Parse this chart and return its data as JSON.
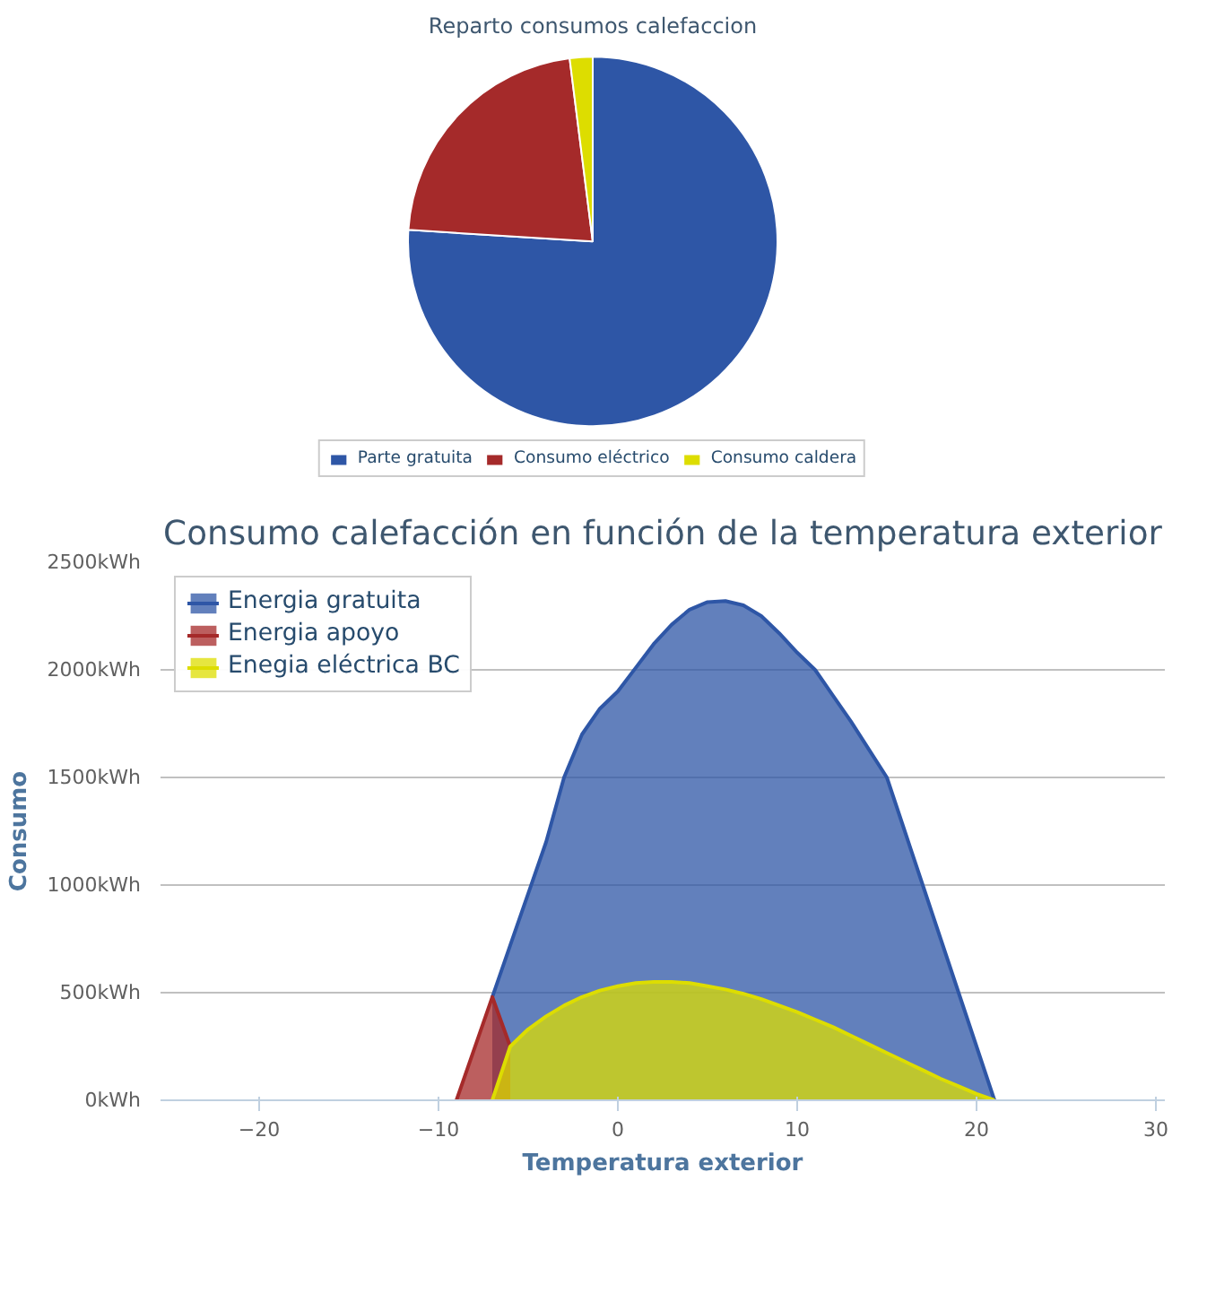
{
  "chart_data": [
    {
      "type": "pie",
      "title": "Reparto consumos calefaccion",
      "categories": [
        "Parte gratuita",
        "Consumo eléctrico",
        "Consumo caldera"
      ],
      "values": [
        76,
        22,
        2
      ],
      "colors": [
        "#2e56a6",
        "#a52a2a",
        "#dddd00"
      ],
      "legend": "bottom"
    },
    {
      "type": "area",
      "title": "Consumo calefacción en función de la temperatura exterior",
      "xlabel": "Temperatura exterior",
      "ylabel": "Consumo",
      "xlim": [
        -25.5,
        30.5
      ],
      "xticks": [
        -20,
        -10,
        0,
        10,
        20,
        30
      ],
      "ylim": [
        0,
        2500
      ],
      "yticks": [
        {
          "value": 0,
          "label": "0kWh"
        },
        {
          "value": 500,
          "label": "500kWh"
        },
        {
          "value": 1000,
          "label": "1000kWh"
        },
        {
          "value": 1500,
          "label": "1500kWh"
        },
        {
          "value": 2000,
          "label": "2000kWh"
        },
        {
          "value": 2500,
          "label": "2500kWh"
        }
      ],
      "grid": "y",
      "legend": "top left",
      "series": [
        {
          "name": "Energia gratuita",
          "color": "#2e56a6",
          "x": [
            -7,
            -6,
            -5,
            -4,
            -3,
            -2,
            -1,
            0,
            1,
            2,
            3,
            4,
            5,
            6,
            7,
            8,
            9,
            10,
            11,
            12,
            13,
            14,
            15,
            16,
            17,
            18,
            19,
            20,
            21
          ],
          "values": [
            480,
            720,
            960,
            1200,
            1500,
            1700,
            1820,
            1900,
            2010,
            2120,
            2210,
            2280,
            2315,
            2320,
            2300,
            2250,
            2170,
            2080,
            2000,
            1880,
            1760,
            1630,
            1500,
            1250,
            1000,
            750,
            500,
            250,
            0
          ]
        },
        {
          "name": "Energia apoyo",
          "color": "#a52a2a",
          "x": [
            -9,
            -7,
            -6
          ],
          "values": [
            0,
            480,
            250
          ]
        },
        {
          "name": "Enegia eléctrica BC",
          "color": "#dddd00",
          "x": [
            -7,
            -6,
            -5,
            -4,
            -3,
            -2,
            -1,
            0,
            1,
            2,
            3,
            4,
            5,
            6,
            7,
            8,
            9,
            10,
            11,
            12,
            13,
            14,
            15,
            16,
            17,
            18,
            19,
            20,
            21
          ],
          "values": [
            0,
            250,
            330,
            390,
            440,
            480,
            510,
            530,
            545,
            550,
            550,
            545,
            530,
            515,
            495,
            470,
            440,
            410,
            375,
            340,
            300,
            260,
            220,
            180,
            140,
            100,
            65,
            30,
            0
          ]
        }
      ]
    }
  ]
}
